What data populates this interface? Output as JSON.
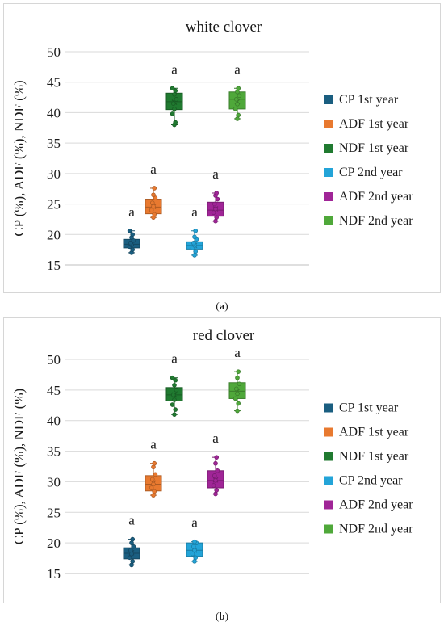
{
  "captions": [
    "a",
    "b"
  ],
  "chart_data": [
    {
      "type": "box",
      "title": "white clover",
      "ylabel": "CP (%), ADF (%), NDF (%)",
      "ylim": [
        15,
        50
      ],
      "yticks": [
        15,
        20,
        25,
        30,
        35,
        40,
        45,
        50
      ],
      "grid": true,
      "legend_position": "right",
      "series": [
        {
          "name": "CP 1st year",
          "color": "#1a5e80",
          "min": 17.0,
          "q1": 17.8,
          "median": 18.4,
          "q3": 19.2,
          "max": 20.6,
          "mean": 18.5,
          "letter": "a",
          "points": [
            17.0,
            17.5,
            18.0,
            18.3,
            18.6,
            19.0,
            19.5,
            20.0,
            20.6
          ]
        },
        {
          "name": "ADF 1st year",
          "color": "#e8792f",
          "min": 22.8,
          "q1": 23.4,
          "median": 24.5,
          "q3": 25.8,
          "max": 27.6,
          "mean": 24.6,
          "letter": "a",
          "points": [
            22.8,
            23.3,
            24.0,
            24.6,
            25.2,
            26.0,
            26.5,
            27.6
          ]
        },
        {
          "name": "NDF 1st year",
          "color": "#207a30",
          "min": 38.0,
          "q1": 40.5,
          "median": 41.8,
          "q3": 43.2,
          "max": 44.0,
          "mean": 41.7,
          "letter": "a",
          "points": [
            38.0,
            38.4,
            39.8,
            40.6,
            41.5,
            42.2,
            43.0,
            43.6,
            44.0
          ]
        },
        {
          "name": "CP 2nd year",
          "color": "#23a4d8",
          "min": 16.6,
          "q1": 17.6,
          "median": 18.2,
          "q3": 18.8,
          "max": 20.6,
          "mean": 18.2,
          "letter": "a",
          "points": [
            16.6,
            17.2,
            17.8,
            18.2,
            18.6,
            19.2,
            19.6,
            20.6
          ]
        },
        {
          "name": "ADF 2nd year",
          "color": "#a02597",
          "min": 22.2,
          "q1": 23.0,
          "median": 24.0,
          "q3": 25.3,
          "max": 26.8,
          "mean": 24.2,
          "letter": "a",
          "points": [
            22.2,
            22.8,
            23.6,
            24.2,
            25.0,
            25.8,
            26.4,
            26.8
          ]
        },
        {
          "name": "NDF 2nd year",
          "color": "#4fa83a",
          "min": 39.0,
          "q1": 40.6,
          "median": 42.2,
          "q3": 43.4,
          "max": 44.0,
          "mean": 41.8,
          "letter": "a",
          "points": [
            39.0,
            39.6,
            40.6,
            41.4,
            42.2,
            42.8,
            43.4,
            44.0
          ]
        }
      ]
    },
    {
      "type": "box",
      "title": "red clover",
      "ylabel": "CP (%), ADF (%), NDF (%)",
      "ylim": [
        15,
        50
      ],
      "yticks": [
        15,
        20,
        25,
        30,
        35,
        40,
        45,
        50
      ],
      "grid": true,
      "legend_position": "right",
      "series": [
        {
          "name": "CP 1st year",
          "color": "#1a5e80",
          "min": 16.4,
          "q1": 17.4,
          "median": 18.3,
          "q3": 19.2,
          "max": 20.6,
          "mean": 18.4,
          "letter": "a",
          "points": [
            16.4,
            17.0,
            17.6,
            18.2,
            18.8,
            19.4,
            20.0,
            20.6
          ]
        },
        {
          "name": "ADF 1st year",
          "color": "#e8792f",
          "min": 27.8,
          "q1": 28.5,
          "median": 29.6,
          "q3": 31.0,
          "max": 33.0,
          "mean": 29.8,
          "letter": "a",
          "points": [
            27.8,
            28.4,
            29.0,
            29.6,
            30.4,
            31.2,
            32.4,
            33.0
          ]
        },
        {
          "name": "NDF 1st year",
          "color": "#207a30",
          "min": 41.0,
          "q1": 43.2,
          "median": 44.2,
          "q3": 45.4,
          "max": 47.0,
          "mean": 44.2,
          "letter": "a",
          "points": [
            41.0,
            41.8,
            42.6,
            43.4,
            44.2,
            45.0,
            45.8,
            46.6,
            47.0
          ]
        },
        {
          "name": "CP 2nd year",
          "color": "#23a4d8",
          "min": 17.0,
          "q1": 17.8,
          "median": 18.8,
          "q3": 20.0,
          "max": 20.2,
          "mean": 18.8,
          "letter": "a",
          "points": [
            17.0,
            17.6,
            18.2,
            18.8,
            19.4,
            20.0,
            20.2
          ]
        },
        {
          "name": "ADF 2nd year",
          "color": "#a02597",
          "min": 28.0,
          "q1": 29.0,
          "median": 30.2,
          "q3": 31.8,
          "max": 34.0,
          "mean": 30.3,
          "letter": "a",
          "points": [
            28.0,
            28.6,
            29.4,
            30.2,
            31.0,
            31.8,
            33.0,
            34.0
          ]
        },
        {
          "name": "NDF 2nd year",
          "color": "#4fa83a",
          "min": 41.6,
          "q1": 43.6,
          "median": 44.8,
          "q3": 46.2,
          "max": 48.0,
          "mean": 44.8,
          "letter": "a",
          "points": [
            41.6,
            42.8,
            43.6,
            44.4,
            45.2,
            46.0,
            47.0,
            48.0
          ]
        }
      ]
    }
  ]
}
